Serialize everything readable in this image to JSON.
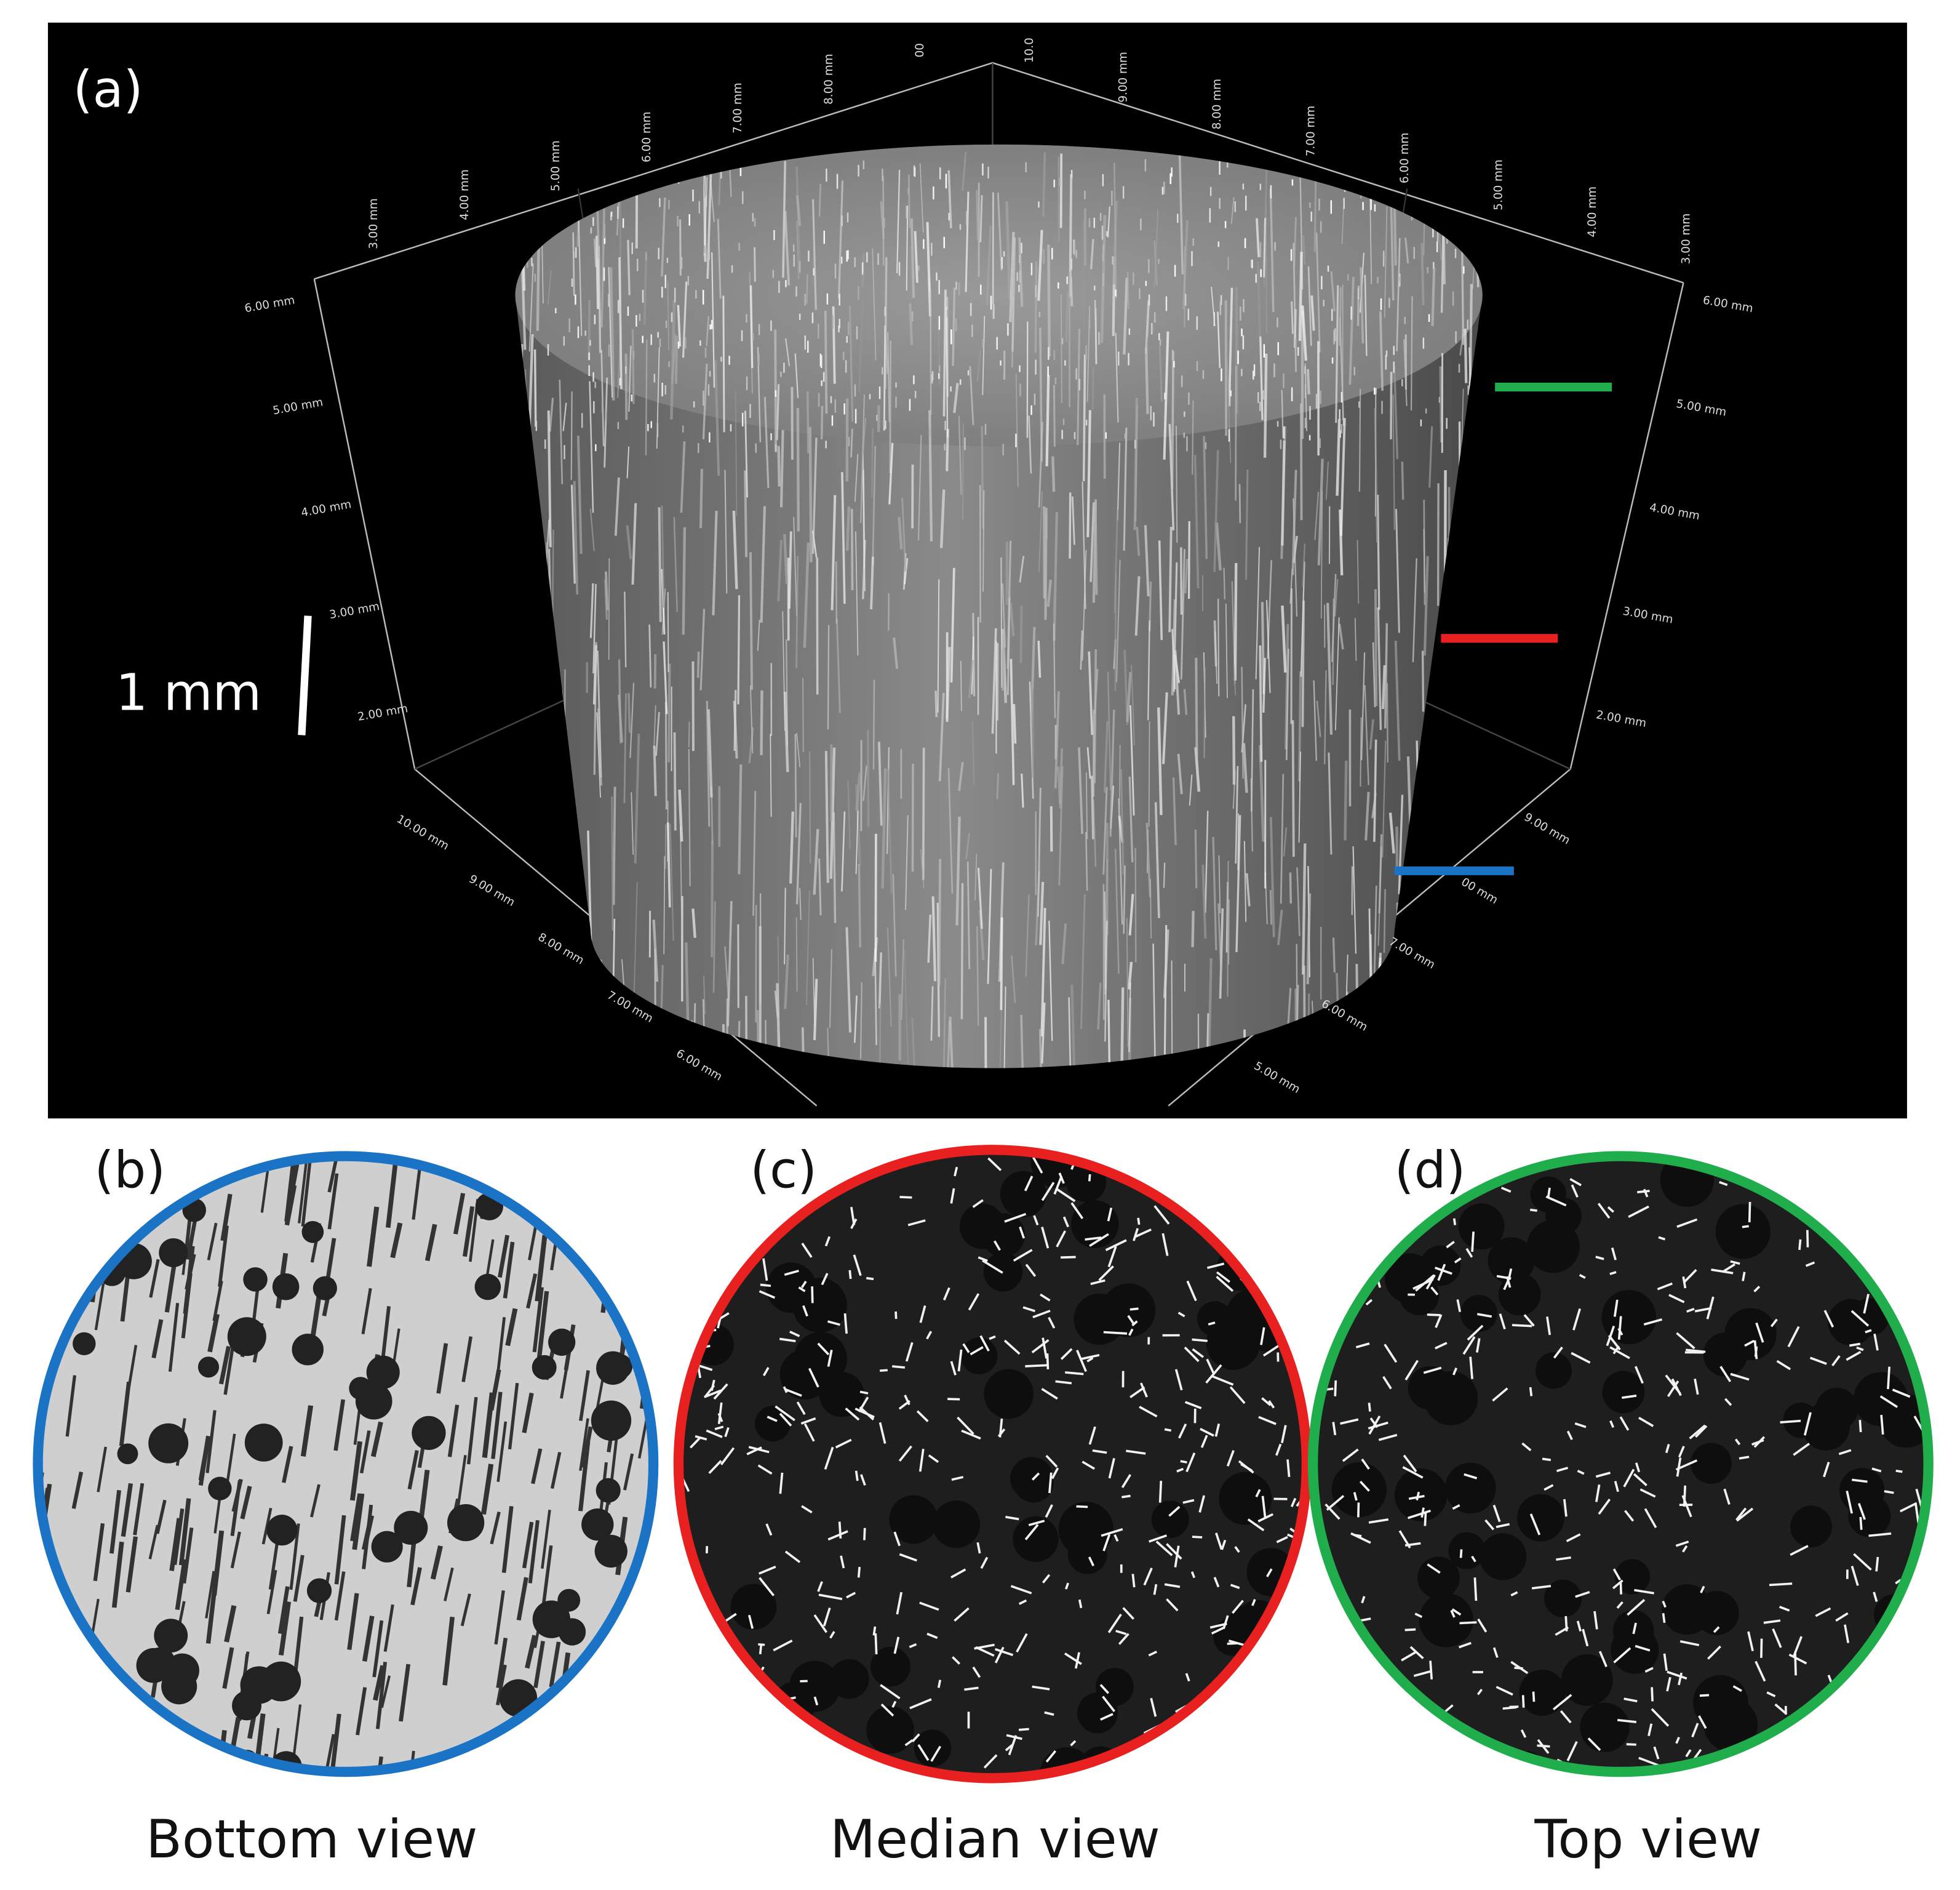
{
  "panel_a": {
    "label": "(a)",
    "scale_bar": "1 mm",
    "axis_labels": {
      "top_left": [
        "3.00 mm",
        "4.00 mm",
        "5.00 mm",
        "6.00 mm",
        "7.00 mm",
        "8.00 mm",
        "00"
      ],
      "top_right": [
        "10.0",
        "9.00 mm",
        "8.00 mm",
        "7.00 mm",
        "6.00 mm",
        "5.00 mm",
        "4.00 mm",
        "3.00 mm"
      ],
      "left": [
        "6.00 mm",
        "5.00 mm",
        "4.00 mm",
        "3.00 mm",
        "2.00 mm"
      ],
      "right": [
        "6.00 mm",
        "5.00 mm",
        "4.00 mm",
        "3.00 mm",
        "2.00 mm"
      ],
      "bottom_left": [
        "10.00 mm",
        "9.00 mm",
        "8.00 mm",
        "7.00 mm",
        "6.00 mm"
      ],
      "bottom_right": [
        "9.00 mm",
        "00 mm",
        "7.00 mm",
        "6.00 mm",
        "5.00 mm"
      ]
    }
  },
  "panels": [
    {
      "label": "(b)",
      "caption": "Bottom view"
    },
    {
      "label": "(c)",
      "caption": "Median view"
    },
    {
      "label": "(d)",
      "caption": "Top view"
    }
  ]
}
